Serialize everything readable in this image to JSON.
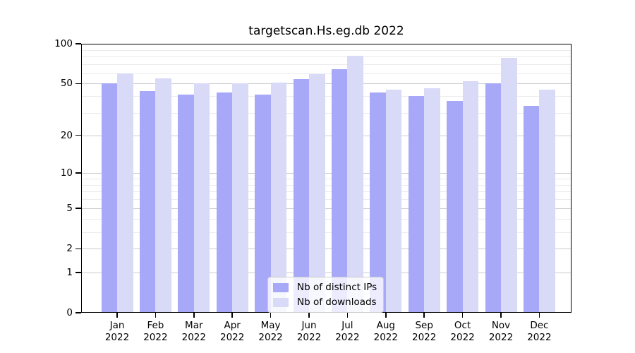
{
  "chart_data": {
    "type": "bar",
    "title": "targetscan.Hs.eg.db 2022",
    "categories": [
      "Jan",
      "Feb",
      "Mar",
      "Apr",
      "May",
      "Jun",
      "Jul",
      "Aug",
      "Sep",
      "Oct",
      "Nov",
      "Dec"
    ],
    "category_year": "2022",
    "series": [
      {
        "name": "Nb of distinct IPs",
        "color": "#a8a8f8",
        "values": [
          50,
          44,
          41,
          43,
          41,
          54,
          64,
          43,
          40,
          37,
          50,
          34
        ]
      },
      {
        "name": "Nb of downloads",
        "color": "#d9d9f8",
        "values": [
          60,
          55,
          50,
          50,
          51,
          59,
          81,
          45,
          46,
          52,
          78,
          45
        ]
      }
    ],
    "yscale": "log1p",
    "ylim": [
      0,
      100
    ],
    "yticks": [
      0,
      1,
      2,
      5,
      10,
      20,
      50,
      100
    ],
    "yticks_minor": [
      3,
      4,
      6,
      7,
      8,
      9,
      30,
      40,
      60,
      70,
      80,
      90
    ],
    "grid": true,
    "legend_position": "lower center",
    "colors": {
      "background": "#ffffff",
      "axis": "#000000",
      "major_grid": "#cccccc",
      "minor_grid": "#ebebeb",
      "legend_border": "#cccccc",
      "text": "#000000"
    }
  }
}
